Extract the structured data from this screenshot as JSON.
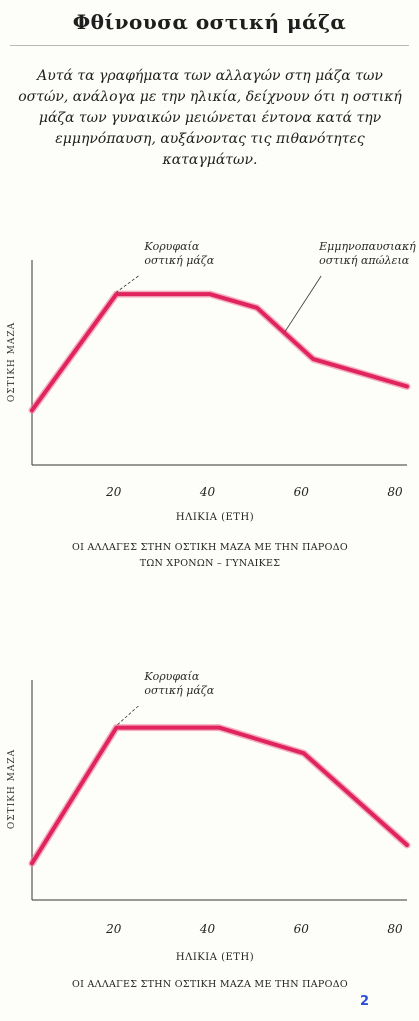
{
  "page": {
    "title": "Φθίνουσα οστική μάζα",
    "intro": "Αυτά τα γραφήματα των αλλαγών στη μάζα των οστών, ανάλογα με την ηλικία, δείχνουν ότι η οστική μάζα των γυναικών μειώνεται έντονα κατά την εμμηνόπαυση, αυξάνοντας τις πιθανότητες καταγμάτων.",
    "page_number": "2"
  },
  "colors": {
    "line": "#e0245e",
    "line_edge": "#f07a9a",
    "axis": "#333333"
  },
  "chart_data": [
    {
      "type": "line",
      "x": [
        0,
        18,
        38,
        48,
        60,
        80
      ],
      "series": [
        {
          "values": [
            32,
            100,
            100,
            92,
            62,
            46
          ]
        }
      ],
      "xticks": [
        20,
        40,
        60,
        80
      ],
      "xlim": [
        0,
        80
      ],
      "ylim": [
        0,
        120
      ],
      "ylabel": "ΟΣΤΙΚΗ ΜΑΖΑ",
      "xlabel": "ΗΛΙΚΙΑ (ΕΤΗ)",
      "caption": [
        "ΟΙ ΑΛΛΑΓΕΣ ΣΤΗΝ ΟΣΤΙΚΗ ΜΑΖΑ ΜΕ ΤΗΝ ΠΑΡΟΔΟ",
        "ΤΩΝ ΧΡΟΝΩΝ – ΓΥΝΑΙΚΕΣ"
      ],
      "annotations": [
        {
          "text": [
            "Κορυφαία",
            "οστική μάζα"
          ],
          "x": 18
        },
        {
          "text": [
            "Εμμηνοπαυσιακή",
            "οστική απώλεια"
          ],
          "x": 54
        }
      ]
    },
    {
      "type": "line",
      "x": [
        0,
        18,
        40,
        58,
        80
      ],
      "series": [
        {
          "values": [
            20,
            94,
            94,
            80,
            30
          ]
        }
      ],
      "xticks": [
        20,
        40,
        60,
        80
      ],
      "xlim": [
        0,
        80
      ],
      "ylim": [
        0,
        120
      ],
      "ylabel": "ΟΣΤΙΚΗ ΜΑΖΑ",
      "xlabel": "ΗΛΙΚΙΑ (ΕΤΗ)",
      "caption": [
        "ΟΙ ΑΛΛΑΓΕΣ ΣΤΗΝ ΟΣΤΙΚΗ ΜΑΖΑ ΜΕ ΤΗΝ ΠΑΡΟΔΟ"
      ],
      "annotations": [
        {
          "text": [
            "Κορυφαία",
            "οστική μάζα"
          ],
          "x": 18
        }
      ]
    }
  ]
}
